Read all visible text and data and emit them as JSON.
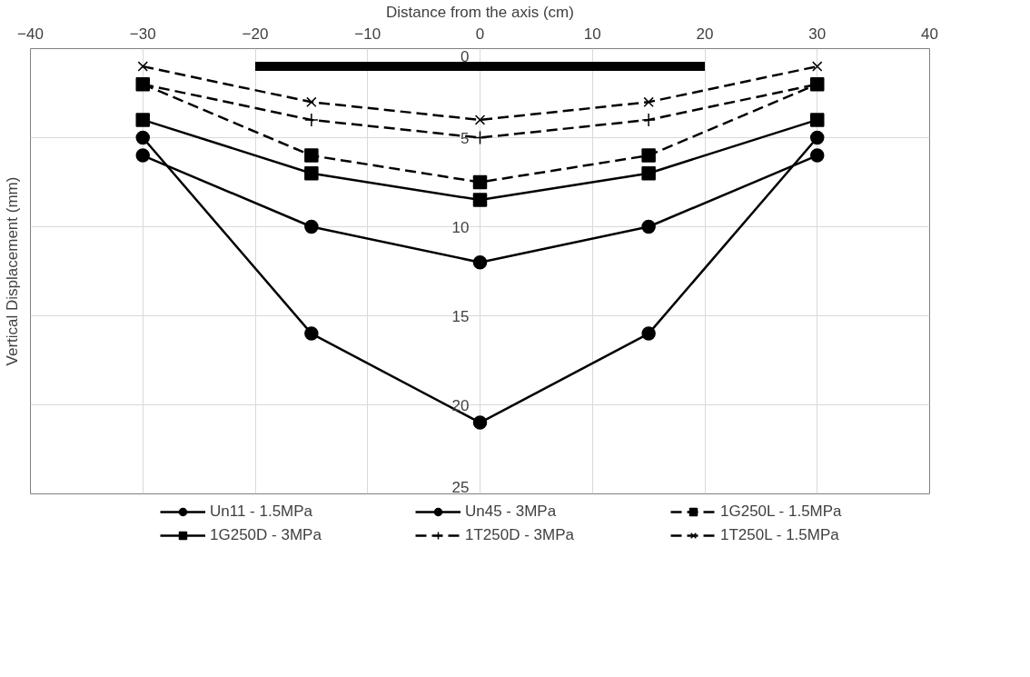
{
  "chart_data": {
    "type": "line",
    "xlabel": "Distance from the axis (cm)",
    "ylabel": "Vertical Displacement (mm)",
    "x": [
      -30,
      -15,
      0,
      15,
      30
    ],
    "xlim": [
      -40,
      40
    ],
    "xticks": [
      -40,
      -30,
      -20,
      -10,
      0,
      10,
      20,
      30,
      40
    ],
    "ylim": [
      25,
      0
    ],
    "yticks": [
      0,
      5,
      10,
      15,
      20,
      25
    ],
    "grid": true,
    "legend": "bottom",
    "series": [
      {
        "name": "Un11 - 1.5MPa",
        "color": "#000000",
        "values": [
          5,
          16,
          21,
          16,
          5
        ],
        "marker": "circle",
        "line_style": "solid"
      },
      {
        "name": "Un45 - 3MPa",
        "color": "#000000",
        "values": [
          6,
          10,
          12,
          10,
          6
        ],
        "marker": "circle",
        "line_style": "solid"
      },
      {
        "name": "1G250L - 1.5MPa",
        "color": "#000000",
        "values": [
          2,
          6,
          7.5,
          6,
          2
        ],
        "marker": "square",
        "line_style": "dashed"
      },
      {
        "name": "1G250D - 3MPa",
        "color": "#000000",
        "values": [
          4,
          7,
          8.5,
          7,
          4
        ],
        "marker": "square",
        "line_style": "solid"
      },
      {
        "name": "1T250D - 3MPa",
        "color": "#000000",
        "values": [
          2,
          4,
          5,
          4,
          2
        ],
        "marker": "cross",
        "line_style": "dashed"
      },
      {
        "name": "1T250L - 1.5MPa",
        "color": "#000000",
        "values": [
          1,
          3,
          4,
          3,
          1
        ],
        "marker": "x",
        "line_style": "dashed"
      },
      {
        "color": "#000000",
        "x": [
          -20,
          20
        ],
        "values": [
          1,
          1
        ],
        "marker": "none",
        "line_style": "solid"
      }
    ]
  }
}
